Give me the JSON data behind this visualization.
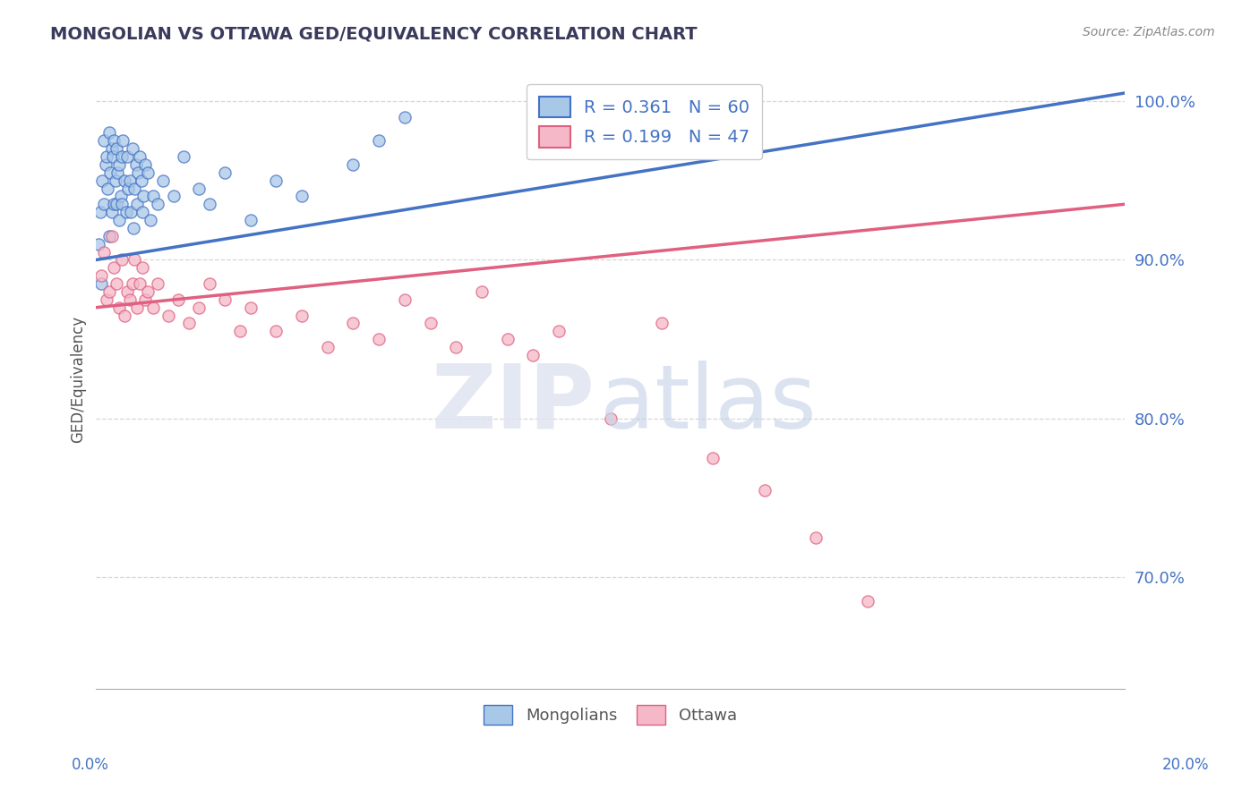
{
  "title": "MONGOLIAN VS OTTAWA GED/EQUIVALENCY CORRELATION CHART",
  "source": "Source: ZipAtlas.com",
  "ylabel": "GED/Equivalency",
  "xmin": 0.0,
  "xmax": 20.0,
  "ymin": 63.0,
  "ymax": 102.0,
  "mongolians_color": "#a8c8e8",
  "ottawa_color": "#f4b8c8",
  "mongolians_line_color": "#4472c4",
  "ottawa_line_color": "#e06080",
  "legend_blue_label": "R = 0.361   N = 60",
  "legend_pink_label": "R = 0.199   N = 47",
  "legend_mongolians": "Mongolians",
  "legend_ottawa": "Ottawa",
  "mongolians_x": [
    0.05,
    0.08,
    0.1,
    0.12,
    0.15,
    0.15,
    0.18,
    0.2,
    0.22,
    0.25,
    0.25,
    0.28,
    0.3,
    0.3,
    0.32,
    0.35,
    0.35,
    0.38,
    0.4,
    0.4,
    0.42,
    0.45,
    0.45,
    0.48,
    0.5,
    0.5,
    0.52,
    0.55,
    0.58,
    0.6,
    0.62,
    0.65,
    0.68,
    0.7,
    0.72,
    0.75,
    0.78,
    0.8,
    0.82,
    0.85,
    0.88,
    0.9,
    0.92,
    0.95,
    1.0,
    1.05,
    1.1,
    1.2,
    1.3,
    1.5,
    1.7,
    2.0,
    2.2,
    2.5,
    3.0,
    3.5,
    4.0,
    5.0,
    5.5,
    6.0
  ],
  "mongolians_y": [
    91.0,
    93.0,
    88.5,
    95.0,
    97.5,
    93.5,
    96.0,
    96.5,
    94.5,
    98.0,
    91.5,
    95.5,
    97.0,
    93.0,
    96.5,
    97.5,
    93.5,
    95.0,
    97.0,
    93.5,
    95.5,
    96.0,
    92.5,
    94.0,
    96.5,
    93.5,
    97.5,
    95.0,
    93.0,
    96.5,
    94.5,
    95.0,
    93.0,
    97.0,
    92.0,
    94.5,
    96.0,
    93.5,
    95.5,
    96.5,
    95.0,
    93.0,
    94.0,
    96.0,
    95.5,
    92.5,
    94.0,
    93.5,
    95.0,
    94.0,
    96.5,
    94.5,
    93.5,
    95.5,
    92.5,
    95.0,
    94.0,
    96.0,
    97.5,
    99.0
  ],
  "ottawa_x": [
    0.1,
    0.15,
    0.2,
    0.25,
    0.3,
    0.35,
    0.4,
    0.45,
    0.5,
    0.55,
    0.6,
    0.65,
    0.7,
    0.75,
    0.8,
    0.85,
    0.9,
    0.95,
    1.0,
    1.1,
    1.2,
    1.4,
    1.6,
    1.8,
    2.0,
    2.2,
    2.5,
    2.8,
    3.0,
    3.5,
    4.0,
    4.5,
    5.0,
    5.5,
    6.0,
    6.5,
    7.0,
    7.5,
    8.0,
    8.5,
    9.0,
    10.0,
    11.0,
    12.0,
    13.0,
    14.0,
    15.0
  ],
  "ottawa_y": [
    89.0,
    90.5,
    87.5,
    88.0,
    91.5,
    89.5,
    88.5,
    87.0,
    90.0,
    86.5,
    88.0,
    87.5,
    88.5,
    90.0,
    87.0,
    88.5,
    89.5,
    87.5,
    88.0,
    87.0,
    88.5,
    86.5,
    87.5,
    86.0,
    87.0,
    88.5,
    87.5,
    85.5,
    87.0,
    85.5,
    86.5,
    84.5,
    86.0,
    85.0,
    87.5,
    86.0,
    84.5,
    88.0,
    85.0,
    84.0,
    85.5,
    80.0,
    86.0,
    77.5,
    75.5,
    72.5,
    68.5
  ],
  "background_color": "#ffffff",
  "grid_color": "#cccccc",
  "ytick_vals": [
    70,
    80,
    90,
    100
  ],
  "ytick_labels": [
    "70.0%",
    "80.0%",
    "90.0%",
    "100.0%"
  ],
  "blue_trend_x0": 0.0,
  "blue_trend_y0": 90.0,
  "blue_trend_x1": 20.0,
  "blue_trend_y1": 100.5,
  "pink_trend_x0": 0.0,
  "pink_trend_y0": 87.0,
  "pink_trend_x1": 20.0,
  "pink_trend_y1": 93.5
}
